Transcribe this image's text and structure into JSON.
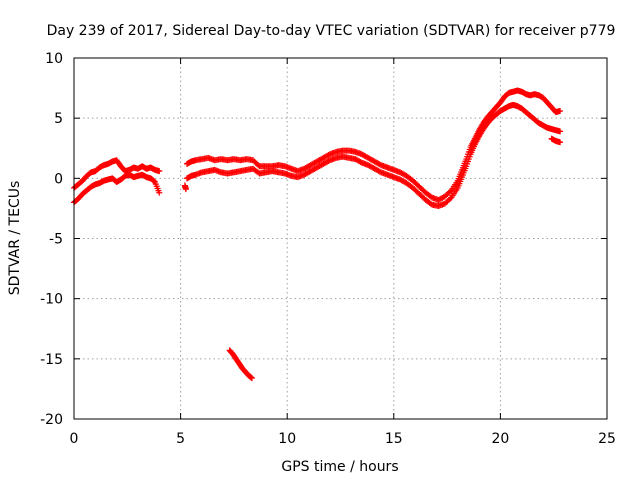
{
  "chart_data": {
    "type": "scatter",
    "title": "Day 239 of 2017, Sidereal Day-to-day VTEC variation (SDTVAR) for receiver p779",
    "xlabel": "GPS time / hours",
    "ylabel": "SDTVAR / TECUs",
    "xlim": [
      0,
      25
    ],
    "ylim": [
      -20,
      10
    ],
    "xticks": [
      0,
      5,
      10,
      15,
      20,
      25
    ],
    "yticks": [
      -20,
      -15,
      -10,
      -5,
      0,
      5,
      10
    ],
    "xtick_labels": [
      "0",
      "5",
      "10",
      "15",
      "20",
      "25"
    ],
    "ytick_labels": [
      "-20",
      "-15",
      "-10",
      "-5",
      "0",
      "5",
      "10"
    ],
    "grid": true,
    "marker": "+",
    "color": "#ff0000",
    "series": [
      {
        "name": "main-trace-lower",
        "points": [
          [
            0.0,
            -2.0
          ],
          [
            0.2,
            -1.7
          ],
          [
            0.4,
            -1.3
          ],
          [
            0.6,
            -1.0
          ],
          [
            0.8,
            -0.7
          ],
          [
            1.0,
            -0.5
          ],
          [
            1.2,
            -0.4
          ],
          [
            1.4,
            -0.2
          ],
          [
            1.6,
            -0.1
          ],
          [
            1.8,
            0.0
          ],
          [
            2.0,
            -0.3
          ],
          [
            2.2,
            -0.1
          ],
          [
            2.4,
            0.2
          ],
          [
            2.6,
            0.3
          ],
          [
            2.8,
            0.1
          ],
          [
            3.0,
            0.2
          ],
          [
            3.2,
            0.3
          ],
          [
            3.4,
            0.1
          ],
          [
            3.6,
            0.0
          ],
          [
            3.8,
            -0.3
          ],
          [
            4.0,
            -1.2
          ],
          [
            5.3,
            0.0
          ],
          [
            5.5,
            0.2
          ],
          [
            5.7,
            0.3
          ],
          [
            6.0,
            0.5
          ],
          [
            6.3,
            0.6
          ],
          [
            6.6,
            0.7
          ],
          [
            6.9,
            0.5
          ],
          [
            7.2,
            0.4
          ],
          [
            7.5,
            0.5
          ],
          [
            7.8,
            0.6
          ],
          [
            8.1,
            0.7
          ],
          [
            8.4,
            0.8
          ],
          [
            8.7,
            0.4
          ],
          [
            9.0,
            0.5
          ],
          [
            9.3,
            0.6
          ],
          [
            9.6,
            0.5
          ],
          [
            9.9,
            0.4
          ],
          [
            10.2,
            0.2
          ],
          [
            10.5,
            0.1
          ],
          [
            10.8,
            0.3
          ],
          [
            11.1,
            0.6
          ],
          [
            11.4,
            0.9
          ],
          [
            11.7,
            1.2
          ],
          [
            12.0,
            1.5
          ],
          [
            12.3,
            1.7
          ],
          [
            12.6,
            1.8
          ],
          [
            12.9,
            1.7
          ],
          [
            13.2,
            1.6
          ],
          [
            13.5,
            1.3
          ],
          [
            13.8,
            1.1
          ],
          [
            14.1,
            0.8
          ],
          [
            14.4,
            0.5
          ],
          [
            14.7,
            0.3
          ],
          [
            15.0,
            0.1
          ],
          [
            15.3,
            -0.1
          ],
          [
            15.6,
            -0.4
          ],
          [
            15.9,
            -0.8
          ],
          [
            16.2,
            -1.3
          ],
          [
            16.5,
            -1.8
          ],
          [
            16.8,
            -2.2
          ],
          [
            17.1,
            -2.3
          ],
          [
            17.4,
            -2.1
          ],
          [
            17.7,
            -1.6
          ],
          [
            18.0,
            -0.8
          ],
          [
            18.2,
            0.1
          ],
          [
            18.4,
            1.0
          ],
          [
            18.6,
            2.0
          ],
          [
            18.8,
            2.8
          ],
          [
            19.0,
            3.5
          ],
          [
            19.2,
            4.1
          ],
          [
            19.4,
            4.6
          ],
          [
            19.6,
            5.0
          ],
          [
            19.8,
            5.3
          ],
          [
            20.0,
            5.6
          ],
          [
            20.2,
            5.8
          ],
          [
            20.4,
            6.0
          ],
          [
            20.6,
            6.1
          ],
          [
            20.8,
            6.0
          ],
          [
            21.0,
            5.8
          ],
          [
            21.2,
            5.5
          ],
          [
            21.4,
            5.2
          ],
          [
            21.6,
            4.9
          ],
          [
            21.8,
            4.6
          ],
          [
            22.0,
            4.4
          ],
          [
            22.2,
            4.2
          ],
          [
            22.4,
            4.1
          ],
          [
            22.6,
            4.0
          ],
          [
            22.8,
            3.9
          ]
        ]
      },
      {
        "name": "main-trace-upper",
        "points": [
          [
            0.0,
            -0.8
          ],
          [
            0.2,
            -0.5
          ],
          [
            0.4,
            -0.2
          ],
          [
            0.6,
            0.2
          ],
          [
            0.8,
            0.5
          ],
          [
            1.0,
            0.6
          ],
          [
            1.2,
            0.9
          ],
          [
            1.4,
            1.1
          ],
          [
            1.6,
            1.2
          ],
          [
            1.8,
            1.4
          ],
          [
            2.0,
            1.5
          ],
          [
            2.2,
            1.0
          ],
          [
            2.4,
            0.6
          ],
          [
            2.6,
            0.7
          ],
          [
            2.8,
            0.9
          ],
          [
            3.0,
            0.8
          ],
          [
            3.2,
            1.0
          ],
          [
            3.4,
            0.8
          ],
          [
            3.6,
            0.9
          ],
          [
            3.8,
            0.7
          ],
          [
            4.0,
            0.6
          ],
          [
            5.3,
            1.2
          ],
          [
            5.5,
            1.4
          ],
          [
            5.7,
            1.5
          ],
          [
            6.0,
            1.6
          ],
          [
            6.3,
            1.7
          ],
          [
            6.6,
            1.5
          ],
          [
            6.9,
            1.6
          ],
          [
            7.2,
            1.5
          ],
          [
            7.5,
            1.6
          ],
          [
            7.8,
            1.5
          ],
          [
            8.1,
            1.6
          ],
          [
            8.4,
            1.5
          ],
          [
            8.7,
            1.0
          ],
          [
            9.0,
            1.0
          ],
          [
            9.3,
            1.0
          ],
          [
            9.6,
            1.1
          ],
          [
            9.9,
            1.0
          ],
          [
            10.2,
            0.8
          ],
          [
            10.5,
            0.6
          ],
          [
            10.8,
            0.8
          ],
          [
            11.1,
            1.1
          ],
          [
            11.4,
            1.4
          ],
          [
            11.7,
            1.7
          ],
          [
            12.0,
            2.0
          ],
          [
            12.3,
            2.2
          ],
          [
            12.6,
            2.3
          ],
          [
            12.9,
            2.3
          ],
          [
            13.2,
            2.2
          ],
          [
            13.5,
            2.0
          ],
          [
            13.8,
            1.7
          ],
          [
            14.1,
            1.4
          ],
          [
            14.4,
            1.1
          ],
          [
            14.7,
            0.9
          ],
          [
            15.0,
            0.7
          ],
          [
            15.3,
            0.5
          ],
          [
            15.6,
            0.2
          ],
          [
            15.9,
            -0.2
          ],
          [
            16.2,
            -0.7
          ],
          [
            16.5,
            -1.2
          ],
          [
            16.8,
            -1.6
          ],
          [
            17.1,
            -1.8
          ],
          [
            17.4,
            -1.5
          ],
          [
            17.7,
            -1.0
          ],
          [
            18.0,
            -0.2
          ],
          [
            18.2,
            0.7
          ],
          [
            18.4,
            1.6
          ],
          [
            18.6,
            2.6
          ],
          [
            18.8,
            3.3
          ],
          [
            19.0,
            4.0
          ],
          [
            19.2,
            4.6
          ],
          [
            19.4,
            5.1
          ],
          [
            19.6,
            5.5
          ],
          [
            19.8,
            5.9
          ],
          [
            20.0,
            6.3
          ],
          [
            20.2,
            6.8
          ],
          [
            20.4,
            7.1
          ],
          [
            20.6,
            7.2
          ],
          [
            20.8,
            7.3
          ],
          [
            21.0,
            7.2
          ],
          [
            21.2,
            7.0
          ],
          [
            21.4,
            6.9
          ],
          [
            21.6,
            7.0
          ],
          [
            21.8,
            6.9
          ],
          [
            22.0,
            6.7
          ],
          [
            22.2,
            6.3
          ],
          [
            22.4,
            5.9
          ],
          [
            22.6,
            5.5
          ],
          [
            22.8,
            5.6
          ]
        ]
      },
      {
        "name": "late-branch",
        "points": [
          [
            22.4,
            3.3
          ],
          [
            22.6,
            3.1
          ],
          [
            22.8,
            3.0
          ]
        ]
      },
      {
        "name": "outlier-segment",
        "points": [
          [
            7.3,
            -14.3
          ],
          [
            7.45,
            -14.6
          ],
          [
            7.6,
            -15.0
          ],
          [
            7.75,
            -15.4
          ],
          [
            7.9,
            -15.8
          ],
          [
            8.05,
            -16.1
          ],
          [
            8.2,
            -16.4
          ],
          [
            8.35,
            -16.6
          ]
        ]
      },
      {
        "name": "isolated-points",
        "points": [
          [
            5.2,
            -0.6
          ],
          [
            5.25,
            -0.9
          ]
        ]
      }
    ]
  }
}
